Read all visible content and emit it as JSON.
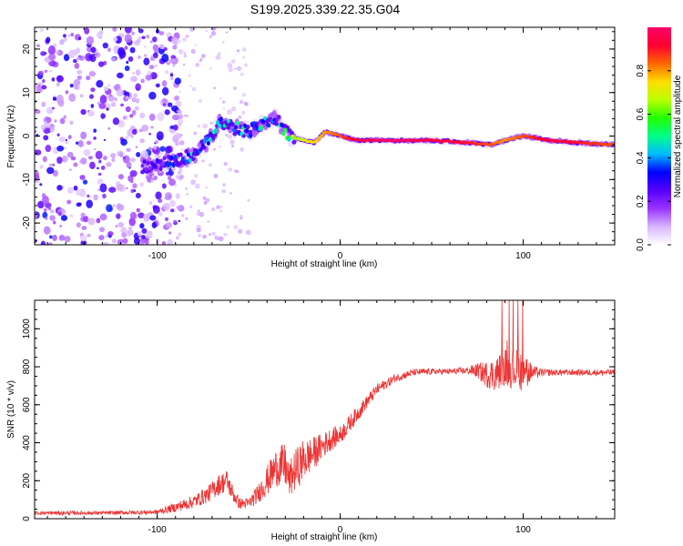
{
  "title": "S199.2025.339.22.35.G04",
  "colors": {
    "signal": "#ee3333",
    "axis": "#000000",
    "colorbar_stops": [
      "#ffffff",
      "#d9b6ff",
      "#9933ff",
      "#5500ff",
      "#0000ff",
      "#00bbff",
      "#00ff88",
      "#22ff00",
      "#bbff00",
      "#ffdd00",
      "#ff6600",
      "#ff0033",
      "#ff0066"
    ]
  },
  "chart_data": [
    {
      "type": "heatmap",
      "name": "spectrogram",
      "title": "",
      "xlabel": "Height of straight line (km)",
      "ylabel": "Frequency (Hz)",
      "xlim": [
        -167,
        150
      ],
      "ylim": [
        -25,
        25
      ],
      "xticks": [
        -100,
        0,
        100
      ],
      "yticks": [
        -20,
        -10,
        0,
        10,
        20
      ],
      "colorbar": {
        "label": "Normalized spectral amplitude",
        "range": [
          0,
          1
        ],
        "ticks": [
          "0.0",
          "0.2",
          "0.4",
          "0.6",
          "0.8"
        ],
        "tick_values": [
          0,
          0.2,
          0.4,
          0.6,
          0.8
        ]
      },
      "ridge": [
        {
          "x": -105,
          "y": -7,
          "a": 0.25
        },
        {
          "x": -95,
          "y": -6,
          "a": 0.3
        },
        {
          "x": -85,
          "y": -5,
          "a": 0.4
        },
        {
          "x": -78,
          "y": -4,
          "a": 0.45
        },
        {
          "x": -72,
          "y": -1,
          "a": 0.5
        },
        {
          "x": -66,
          "y": 3,
          "a": 0.5
        },
        {
          "x": -58,
          "y": 2,
          "a": 0.45
        },
        {
          "x": -50,
          "y": 1,
          "a": 0.45
        },
        {
          "x": -42,
          "y": 3,
          "a": 0.45
        },
        {
          "x": -35,
          "y": 4,
          "a": 0.35
        },
        {
          "x": -28,
          "y": 0,
          "a": 0.6
        },
        {
          "x": -20,
          "y": -1,
          "a": 0.7
        },
        {
          "x": -14,
          "y": -1.5,
          "a": 0.75
        },
        {
          "x": -8,
          "y": 1,
          "a": 0.8
        },
        {
          "x": 0,
          "y": 0,
          "a": 0.85
        },
        {
          "x": 10,
          "y": -1,
          "a": 0.95
        },
        {
          "x": 30,
          "y": -1,
          "a": 1.0
        },
        {
          "x": 50,
          "y": -1,
          "a": 0.95
        },
        {
          "x": 70,
          "y": -1.5,
          "a": 0.9
        },
        {
          "x": 82,
          "y": -2,
          "a": 0.85
        },
        {
          "x": 90,
          "y": -1,
          "a": 0.8
        },
        {
          "x": 100,
          "y": 0,
          "a": 0.85
        },
        {
          "x": 115,
          "y": -1,
          "a": 0.95
        },
        {
          "x": 130,
          "y": -1.5,
          "a": 0.9
        },
        {
          "x": 148,
          "y": -2,
          "a": 0.85
        }
      ]
    },
    {
      "type": "line",
      "name": "snr",
      "title": "",
      "xlabel": "Height of straight line (km)",
      "ylabel": "SNR (10 * v/v)",
      "xlim": [
        -167,
        150
      ],
      "ylim": [
        0,
        1150
      ],
      "xticks": [
        -100,
        0,
        100
      ],
      "yticks": [
        0,
        200,
        400,
        600,
        800,
        1000
      ],
      "envelope": {
        "x": [
          -167,
          -130,
          -100,
          -90,
          -80,
          -72,
          -67,
          -62,
          -58,
          -55,
          -50,
          -45,
          -40,
          -35,
          -30,
          -28,
          -25,
          -20,
          -15,
          -10,
          -5,
          0,
          10,
          20,
          30,
          40,
          50,
          60,
          70,
          75,
          80,
          85,
          90,
          95,
          100,
          105,
          110,
          120,
          130,
          140,
          150
        ],
        "y": [
          30,
          30,
          35,
          60,
          90,
          130,
          175,
          200,
          120,
          80,
          80,
          130,
          200,
          270,
          280,
          200,
          250,
          310,
          340,
          380,
          420,
          440,
          560,
          680,
          740,
          770,
          775,
          775,
          780,
          780,
          760,
          760,
          800,
          790,
          780,
          770,
          770,
          770,
          770,
          770,
          770
        ],
        "noise": [
          10,
          10,
          12,
          25,
          35,
          45,
          55,
          60,
          40,
          30,
          30,
          50,
          80,
          100,
          120,
          90,
          110,
          110,
          90,
          70,
          60,
          50,
          40,
          30,
          22,
          18,
          16,
          16,
          20,
          40,
          70,
          90,
          100,
          110,
          110,
          40,
          20,
          16,
          16,
          16,
          16
        ]
      }
    }
  ]
}
